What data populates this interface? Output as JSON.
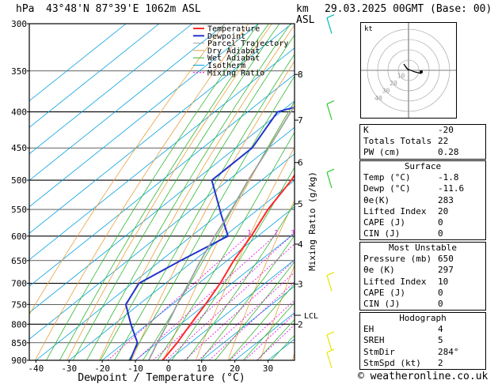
{
  "header": {
    "unit_hpa": "hPa",
    "location": "43°48'N 87°39'E 1062m ASL",
    "km": "km",
    "asl": "ASL",
    "datetime": "29.03.2025 00GMT (Base: 00)"
  },
  "chart_data": {
    "type": "line",
    "title": "",
    "xlabel": "Dewpoint / Temperature (°C)",
    "ylabel": "hPa",
    "right_label": "Mixing Ratio (g/kg)",
    "x_ticks": [
      -40,
      -30,
      -20,
      -10,
      0,
      10,
      20,
      30
    ],
    "xlim": [
      -42,
      38
    ],
    "ylim": [
      900,
      300
    ],
    "p_ticks": [
      300,
      350,
      400,
      450,
      500,
      550,
      600,
      650,
      700,
      750,
      800,
      850,
      900
    ],
    "p_major": [
      300,
      400,
      500,
      600,
      700,
      800,
      900
    ],
    "km_ticks": [
      {
        "km": "8",
        "p": 354
      },
      {
        "km": "7",
        "p": 411
      },
      {
        "km": "6",
        "p": 472
      },
      {
        "km": "5",
        "p": 540
      },
      {
        "km": "4",
        "p": 616
      },
      {
        "km": "3",
        "p": 702
      },
      {
        "km": "2",
        "p": 800
      }
    ],
    "lcl": {
      "label": "LCL",
      "p": 777
    },
    "mixing_ratio_labels": [
      "1",
      "2",
      "3",
      "4",
      "6",
      "8",
      "10",
      "15",
      "20",
      "25"
    ],
    "legend": {
      "placement": "top-left",
      "entries": [
        "Temperature",
        "Dewpoint",
        "Parcel Trajectory",
        "Dry Adiabat",
        "Wet Adiabat",
        "Isotherm",
        "Mixing Ratio"
      ]
    },
    "series": [
      {
        "name": "Temperature",
        "color": "#ff2a2a",
        "points": [
          [
            900,
            -1.8
          ],
          [
            850,
            -4
          ],
          [
            800,
            -7
          ],
          [
            750,
            -10
          ],
          [
            700,
            -13.5
          ],
          [
            650,
            -18
          ],
          [
            600,
            -22
          ],
          [
            550,
            -27
          ],
          [
            500,
            -31
          ],
          [
            450,
            -37
          ],
          [
            400,
            -43.5
          ],
          [
            350,
            -51
          ],
          [
            300,
            -59
          ]
        ]
      },
      {
        "name": "Dewpoint",
        "color": "#2233cc",
        "points": [
          [
            900,
            -11.6
          ],
          [
            850,
            -16
          ],
          [
            800,
            -25
          ],
          [
            750,
            -34
          ],
          [
            700,
            -38
          ],
          [
            650,
            -34
          ],
          [
            600,
            -29
          ],
          [
            560,
            -39
          ],
          [
            500,
            -55
          ],
          [
            450,
            -55
          ],
          [
            400,
            -61
          ],
          [
            350,
            -31
          ],
          [
            300,
            -39
          ]
        ]
      },
      {
        "name": "Parcel Trajectory",
        "color": "#a0a0a0",
        "points": [
          [
            900,
            -6
          ],
          [
            850,
            -10
          ],
          [
            800,
            -14
          ],
          [
            777,
            -16
          ],
          [
            750,
            -18.5
          ],
          [
            700,
            -23
          ],
          [
            650,
            -28
          ],
          [
            600,
            -33
          ],
          [
            550,
            -38
          ],
          [
            500,
            -44
          ],
          [
            450,
            -50
          ],
          [
            400,
            -57
          ],
          [
            350,
            -64
          ],
          [
            300,
            -71
          ]
        ]
      }
    ],
    "hodograph": {
      "label": "kt",
      "rings": [
        "10",
        "20",
        "30",
        "40"
      ]
    },
    "wind": {
      "color_low": "#e6e600",
      "color_mid": "#33cc33",
      "color_high": "#00bbbb"
    }
  },
  "indices": {
    "rows1": [
      [
        "K",
        "-20"
      ],
      [
        "Totals Totals",
        "22"
      ],
      [
        "PW (cm)",
        "0.28"
      ]
    ],
    "surface_title": "Surface",
    "surface": [
      [
        "Temp (°C)",
        "-1.8"
      ],
      [
        "Dewp (°C)",
        "-11.6"
      ],
      [
        "θe(K)",
        "283"
      ],
      [
        "Lifted Index",
        "20"
      ],
      [
        "CAPE (J)",
        "0"
      ],
      [
        "CIN (J)",
        "0"
      ]
    ],
    "mu_title": "Most Unstable",
    "mu": [
      [
        "Pressure (mb)",
        "650"
      ],
      [
        "θe (K)",
        "297"
      ],
      [
        "Lifted Index",
        "10"
      ],
      [
        "CAPE (J)",
        "0"
      ],
      [
        "CIN (J)",
        "0"
      ]
    ],
    "hodo_title": "Hodograph",
    "hodo": [
      [
        "EH",
        "4"
      ],
      [
        "SREH",
        "5"
      ],
      [
        "StmDir",
        "284°"
      ],
      [
        "StmSpd (kt)",
        "2"
      ]
    ]
  },
  "footer": "© weatheronline.co.uk"
}
